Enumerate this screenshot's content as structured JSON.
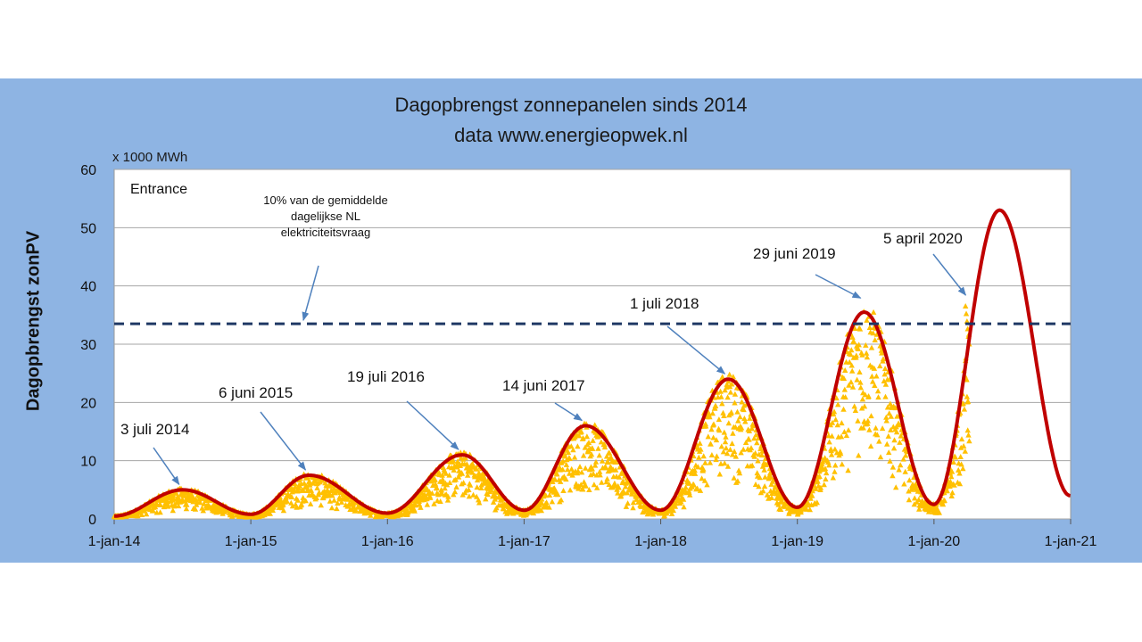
{
  "chart_data": {
    "type": "scatter",
    "title": "Dagopbrengst zonnepanelen sinds 2014",
    "subtitle": "data www.energieopwek.nl",
    "unit_label": "x 1000 MWh",
    "ylabel": "Dagopbrengst zonPV",
    "xlabel": "",
    "ylim": [
      0,
      60
    ],
    "xlim": [
      "2014-01-01",
      "2021-01-01"
    ],
    "y_ticks": [
      "0",
      "10",
      "20",
      "30",
      "40",
      "50",
      "60"
    ],
    "x_ticks": [
      "1-jan-14",
      "1-jan-15",
      "1-jan-16",
      "1-jan-17",
      "1-jan-18",
      "1-jan-19",
      "1-jan-20",
      "1-jan-21"
    ],
    "grid": "horizontal",
    "legend": {
      "entry": "Entrance",
      "placement": "top-left"
    },
    "threshold": {
      "value": 33.5,
      "label": "10% van de gemiddelde dagelijkse NL elektriciteitsvraag"
    },
    "trend_envelope": {
      "color": "#c00000",
      "peaks": [
        {
          "date": "2014-07-03",
          "value": 5
        },
        {
          "date": "2015-06-06",
          "value": 7.5
        },
        {
          "date": "2016-07-19",
          "value": 11
        },
        {
          "date": "2017-06-14",
          "value": 16
        },
        {
          "date": "2018-07-01",
          "value": 24
        },
        {
          "date": "2019-06-29",
          "value": 35.5
        },
        {
          "date": "2020-06-25",
          "value": 53
        }
      ],
      "troughs": [
        {
          "date": "2014-01-01",
          "value": 0.5
        },
        {
          "date": "2015-01-01",
          "value": 0.8
        },
        {
          "date": "2016-01-01",
          "value": 1
        },
        {
          "date": "2017-01-01",
          "value": 1.5
        },
        {
          "date": "2018-01-01",
          "value": 1.5
        },
        {
          "date": "2019-01-01",
          "value": 2
        },
        {
          "date": "2020-01-01",
          "value": 2.5
        },
        {
          "date": "2020-12-31",
          "value": 4
        }
      ]
    },
    "daily_points_color": "#ffc000",
    "daily_points_end": "2020-04-05",
    "annotations": [
      {
        "label": "3 juli 2014",
        "date": "2014-07-03",
        "value": 5
      },
      {
        "label": "6 juni 2015",
        "date": "2015-06-06",
        "value": 7.5
      },
      {
        "label": "19 juli 2016",
        "date": "2016-07-19",
        "value": 11
      },
      {
        "label": "14 juni 2017",
        "date": "2017-06-14",
        "value": 16
      },
      {
        "label": "1 juli 2018",
        "date": "2018-07-01",
        "value": 24
      },
      {
        "label": "29 juni 2019",
        "date": "2019-06-29",
        "value": 37
      },
      {
        "label": "5 april 2020",
        "date": "2020-04-05",
        "value": 37.5
      }
    ]
  }
}
